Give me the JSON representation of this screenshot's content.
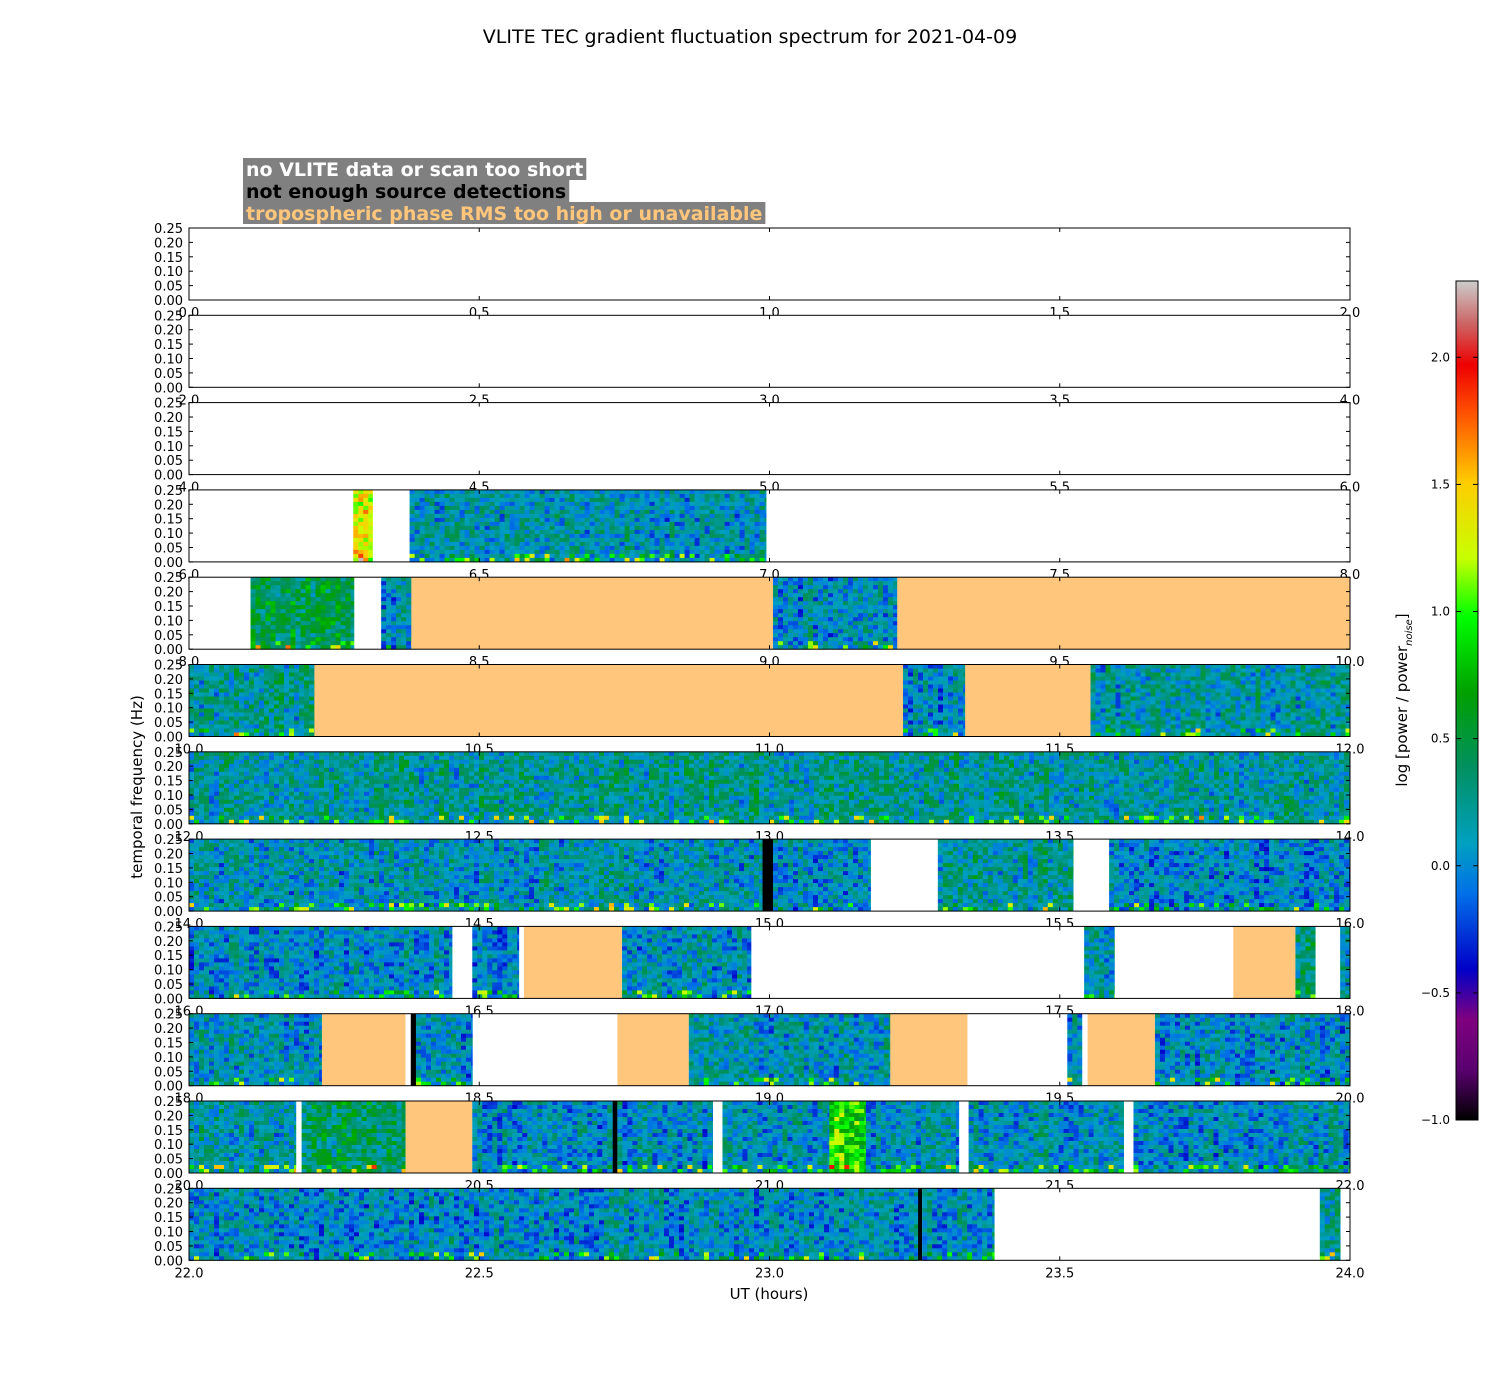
{
  "chart_data": {
    "type": "heatmap",
    "title": "VLITE TEC gradient fluctuation spectrum for 2021-04-09",
    "xlabel": "UT (hours)",
    "ylabel": "temporal frequency (Hz)",
    "xlim": [
      0,
      24
    ],
    "ylim": [
      0,
      0.25
    ],
    "hours_per_panel": 2,
    "y_ticks": [
      "0.00",
      "0.05",
      "0.10",
      "0.15",
      "0.20",
      "0.25"
    ],
    "colorbar": {
      "label_main": "log [power / power",
      "label_sub": "noise",
      "label_end": "]",
      "range": [
        -1.0,
        2.3
      ],
      "ticks": [
        -1.0,
        -0.5,
        0.0,
        0.5,
        1.0,
        1.5,
        2.0
      ],
      "tick_labels": [
        "−1.0",
        "−0.5",
        "0.0",
        "0.5",
        "1.0",
        "1.5",
        "2.0"
      ]
    },
    "legend": [
      {
        "label": "no VLITE data or scan too short",
        "color": "#ffffff",
        "background": "#808080"
      },
      {
        "label": "not enough source detections",
        "color": "#000000",
        "background": "#808080"
      },
      {
        "label": "tropospheric phase RMS too high or unavailable",
        "color": "#ffc67c",
        "background": "#808080"
      }
    ],
    "segments": [
      {
        "start": 0.0,
        "end": 6.0,
        "status": "no_data"
      },
      {
        "start": 6.0,
        "end": 6.283,
        "status": "no_data"
      },
      {
        "start": 6.283,
        "end": 6.316,
        "status": "data",
        "level": 1.3
      },
      {
        "start": 6.316,
        "end": 6.38,
        "status": "no_data"
      },
      {
        "start": 6.38,
        "end": 6.994,
        "status": "data",
        "level": 0.1
      },
      {
        "start": 6.994,
        "end": 7.5,
        "status": "no_data"
      },
      {
        "start": 8.0,
        "end": 8.106,
        "status": "no_data"
      },
      {
        "start": 8.106,
        "end": 8.284,
        "status": "data",
        "level": 0.45
      },
      {
        "start": 8.284,
        "end": 8.331,
        "status": "no_data"
      },
      {
        "start": 8.331,
        "end": 8.383,
        "status": "data",
        "level": 0.05
      },
      {
        "start": 8.383,
        "end": 9.006,
        "status": "tropo"
      },
      {
        "start": 9.006,
        "end": 9.22,
        "status": "data",
        "level": 0.05
      },
      {
        "start": 9.22,
        "end": 10.0,
        "status": "tropo"
      },
      {
        "start": 10.0,
        "end": 10.216,
        "status": "data",
        "level": 0.2
      },
      {
        "start": 10.216,
        "end": 11.23,
        "status": "tropo"
      },
      {
        "start": 11.23,
        "end": 11.337,
        "status": "data",
        "level": 0.05
      },
      {
        "start": 11.337,
        "end": 11.553,
        "status": "tropo"
      },
      {
        "start": 11.553,
        "end": 12.0,
        "status": "data",
        "level": 0.15
      },
      {
        "start": 12.0,
        "end": 14.0,
        "status": "data",
        "level": 0.2
      },
      {
        "start": 14.0,
        "end": 14.988,
        "status": "data",
        "level": 0.1
      },
      {
        "start": 14.988,
        "end": 15.006,
        "status": "detections"
      },
      {
        "start": 15.006,
        "end": 15.174,
        "status": "data",
        "level": 0.05
      },
      {
        "start": 15.174,
        "end": 15.29,
        "status": "no_data"
      },
      {
        "start": 15.29,
        "end": 15.523,
        "status": "data",
        "level": 0.2
      },
      {
        "start": 15.523,
        "end": 15.585,
        "status": "no_data"
      },
      {
        "start": 15.585,
        "end": 16.0,
        "status": "data",
        "level": 0.0
      },
      {
        "start": 16.0,
        "end": 16.453,
        "status": "data",
        "level": 0.05
      },
      {
        "start": 16.453,
        "end": 16.488,
        "status": "no_data"
      },
      {
        "start": 16.488,
        "end": 16.568,
        "status": "data",
        "level": 0.0
      },
      {
        "start": 16.568,
        "end": 16.577,
        "status": "no_data"
      },
      {
        "start": 16.577,
        "end": 16.746,
        "status": "tropo"
      },
      {
        "start": 16.746,
        "end": 16.968,
        "status": "data",
        "level": 0.05
      },
      {
        "start": 16.968,
        "end": 17.542,
        "status": "no_data"
      },
      {
        "start": 17.542,
        "end": 17.594,
        "status": "data",
        "level": 0.1
      },
      {
        "start": 17.594,
        "end": 17.799,
        "status": "no_data"
      },
      {
        "start": 17.799,
        "end": 17.906,
        "status": "tropo"
      },
      {
        "start": 17.906,
        "end": 17.94,
        "status": "data",
        "level": 0.35
      },
      {
        "start": 17.94,
        "end": 17.983,
        "status": "no_data"
      },
      {
        "start": 17.983,
        "end": 18.0,
        "status": "data",
        "level": 0.1
      },
      {
        "start": 18.0,
        "end": 18.229,
        "status": "data",
        "level": 0.1
      },
      {
        "start": 18.229,
        "end": 18.373,
        "status": "tropo"
      },
      {
        "start": 18.373,
        "end": 18.382,
        "status": "no_data"
      },
      {
        "start": 18.382,
        "end": 18.391,
        "status": "detections"
      },
      {
        "start": 18.391,
        "end": 18.488,
        "status": "data",
        "level": 0.05
      },
      {
        "start": 18.488,
        "end": 18.738,
        "status": "no_data"
      },
      {
        "start": 18.738,
        "end": 18.861,
        "status": "tropo"
      },
      {
        "start": 18.861,
        "end": 19.208,
        "status": "data",
        "level": 0.1
      },
      {
        "start": 19.208,
        "end": 19.341,
        "status": "tropo"
      },
      {
        "start": 19.341,
        "end": 19.513,
        "status": "no_data"
      },
      {
        "start": 19.513,
        "end": 19.538,
        "status": "data",
        "level": 0.05
      },
      {
        "start": 19.538,
        "end": 19.548,
        "status": "no_data"
      },
      {
        "start": 19.548,
        "end": 19.664,
        "status": "tropo"
      },
      {
        "start": 19.664,
        "end": 20.0,
        "status": "data",
        "level": 0.05
      },
      {
        "start": 20.0,
        "end": 20.184,
        "status": "data",
        "level": 0.15
      },
      {
        "start": 20.184,
        "end": 20.194,
        "status": "no_data"
      },
      {
        "start": 20.194,
        "end": 20.373,
        "status": "data",
        "level": 0.35
      },
      {
        "start": 20.373,
        "end": 20.488,
        "status": "tropo"
      },
      {
        "start": 20.488,
        "end": 20.73,
        "status": "data",
        "level": 0.05
      },
      {
        "start": 20.73,
        "end": 20.738,
        "status": "detections"
      },
      {
        "start": 20.738,
        "end": 20.902,
        "status": "data",
        "level": 0.05
      },
      {
        "start": 20.902,
        "end": 20.919,
        "status": "no_data"
      },
      {
        "start": 20.919,
        "end": 21.103,
        "status": "data",
        "level": 0.1
      },
      {
        "start": 21.103,
        "end": 21.166,
        "status": "data",
        "level": 0.9
      },
      {
        "start": 21.166,
        "end": 21.326,
        "status": "data",
        "level": 0.1
      },
      {
        "start": 21.326,
        "end": 21.343,
        "status": "no_data"
      },
      {
        "start": 21.343,
        "end": 21.61,
        "status": "data",
        "level": 0.1
      },
      {
        "start": 21.61,
        "end": 21.627,
        "status": "no_data"
      },
      {
        "start": 21.627,
        "end": 22.0,
        "status": "data",
        "level": 0.05
      },
      {
        "start": 22.0,
        "end": 23.256,
        "status": "data",
        "level": 0.05
      },
      {
        "start": 23.256,
        "end": 23.263,
        "status": "detections"
      },
      {
        "start": 23.263,
        "end": 23.387,
        "status": "data",
        "level": 0.05
      },
      {
        "start": 23.387,
        "end": 23.948,
        "status": "no_data"
      },
      {
        "start": 23.948,
        "end": 23.983,
        "status": "data",
        "level": 0.3
      },
      {
        "start": 23.983,
        "end": 24.0,
        "status": "no_data"
      }
    ]
  }
}
